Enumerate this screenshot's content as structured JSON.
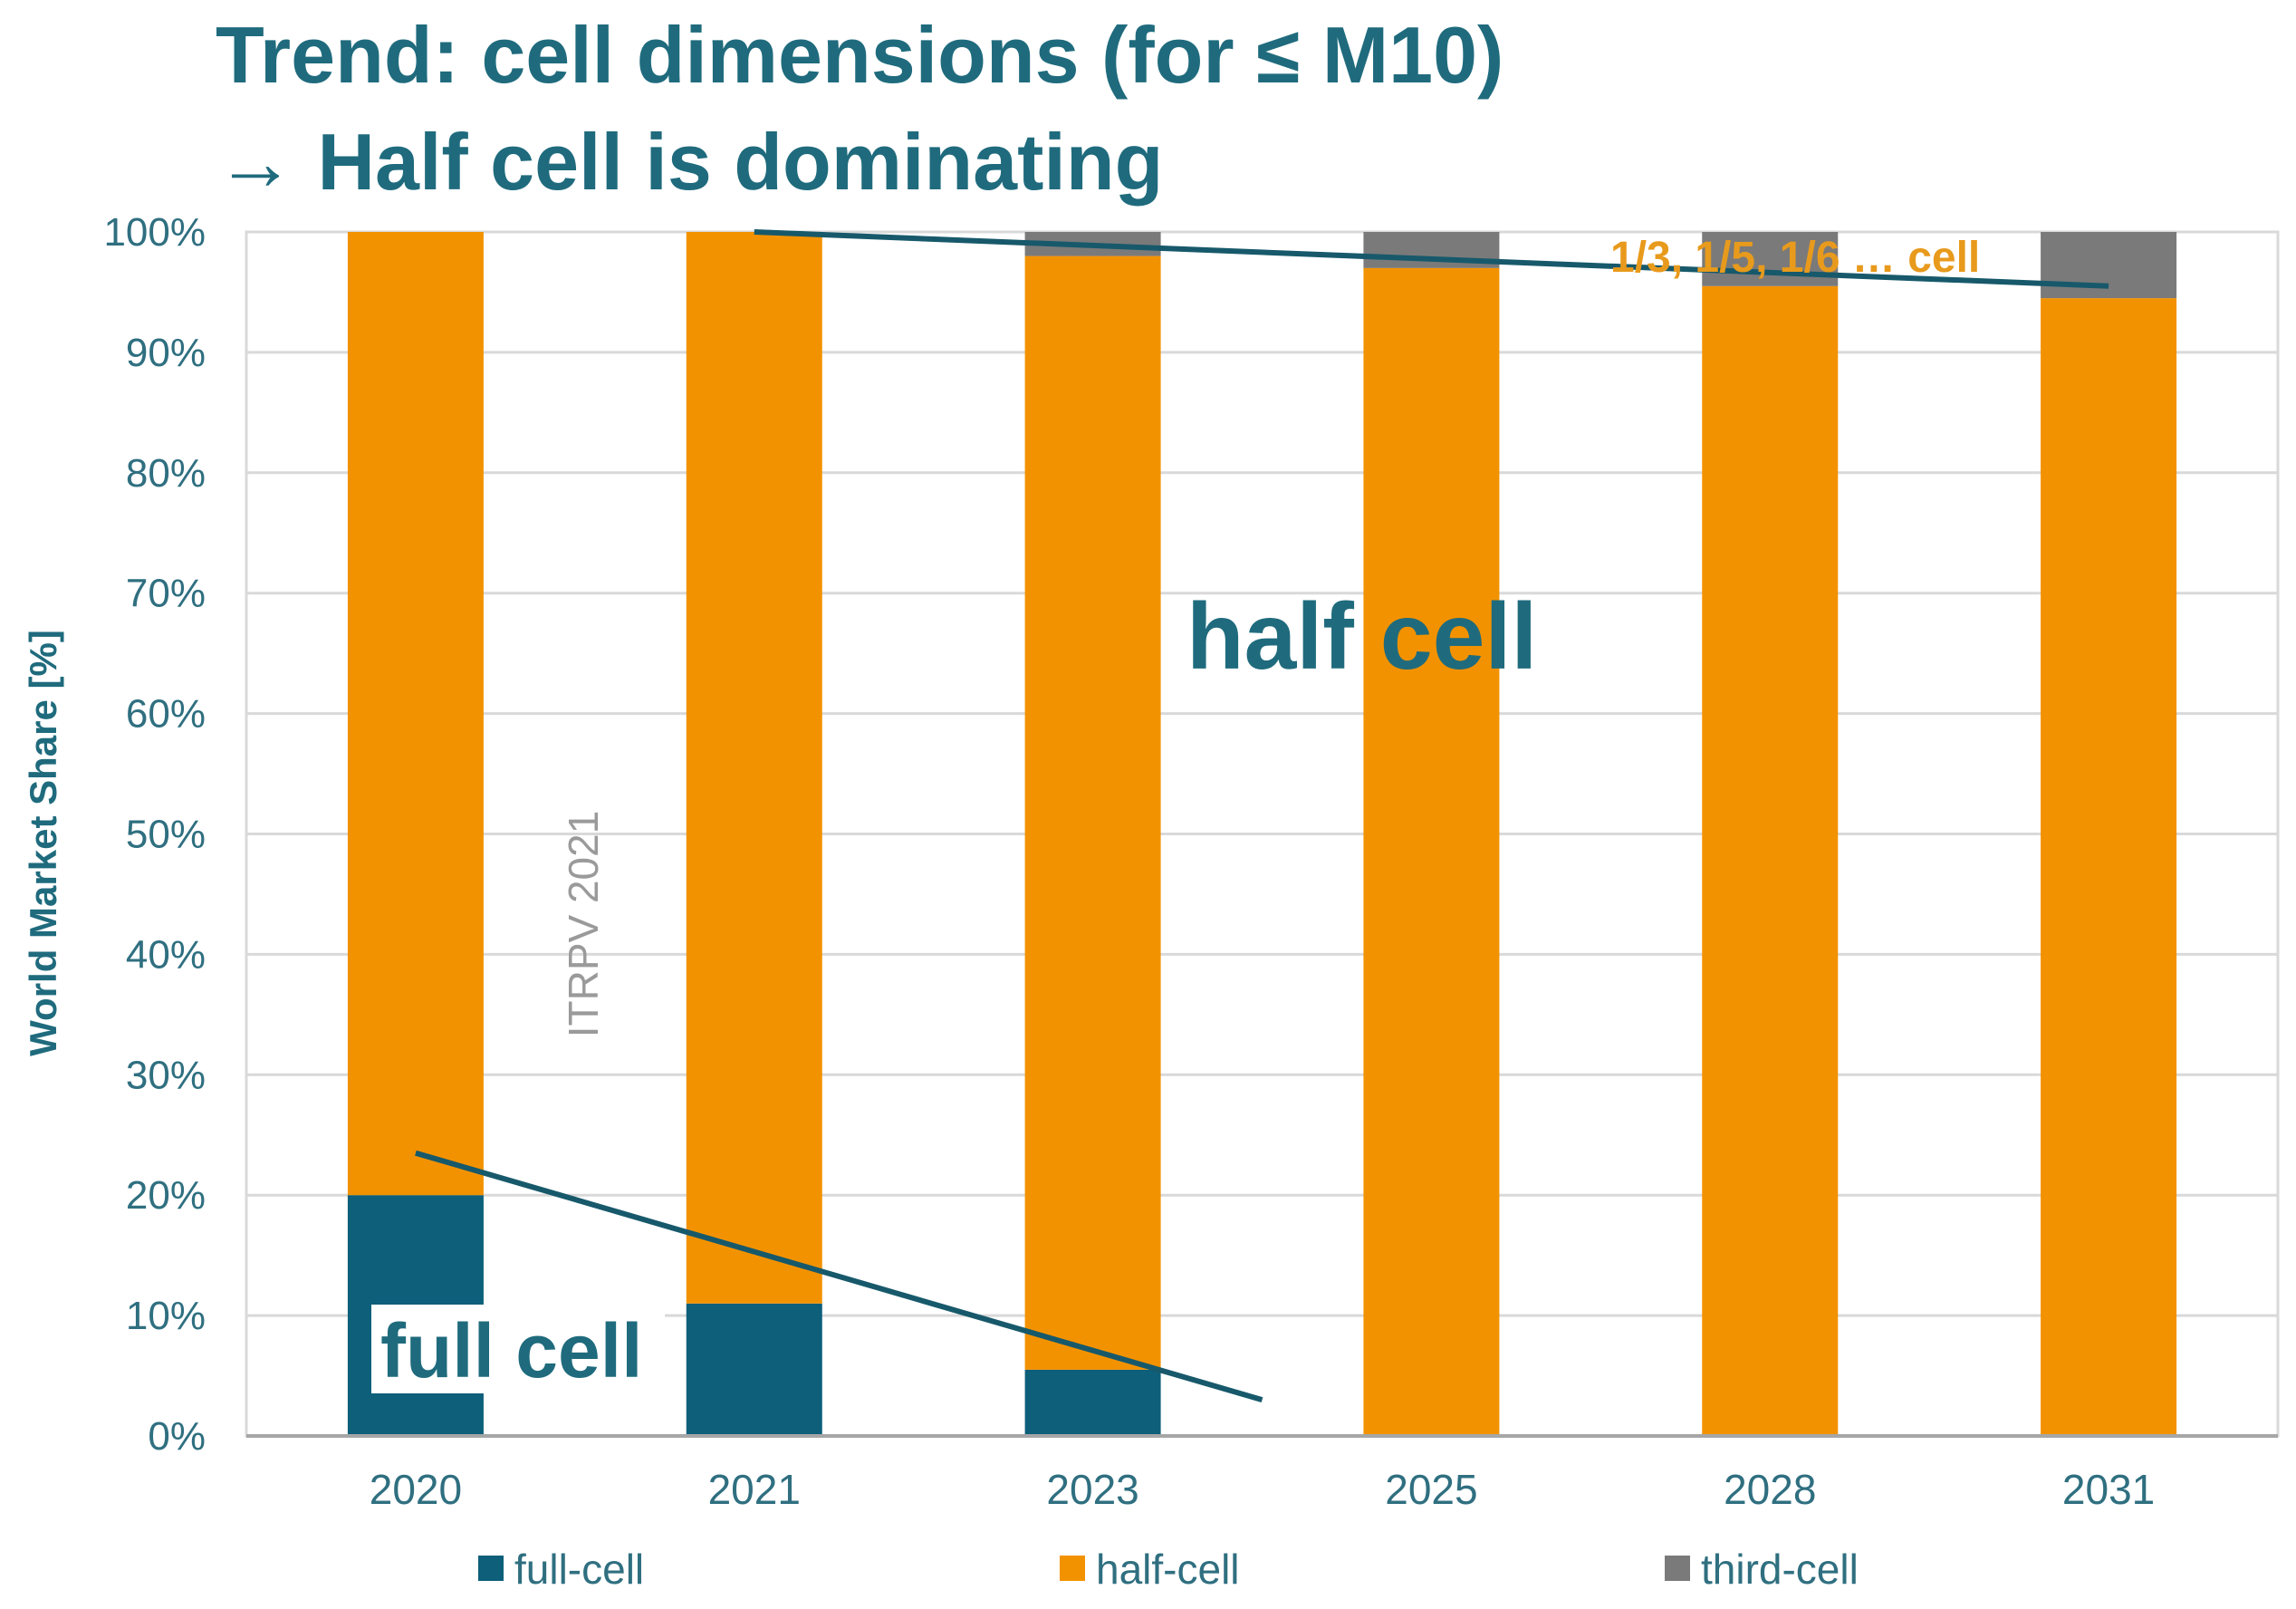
{
  "header": {
    "title_line1": "Trend: cell dimensions (for ≤ M10)",
    "title_line2": "→ Half cell is dominating"
  },
  "colors": {
    "title": "#1f6b7d",
    "full_cell": "#0d5f7a",
    "half_cell": "#f39200",
    "third_cell": "#7a7a7a",
    "axis_text": "#2f6f80",
    "grid": "#d9d9d9",
    "trend_line": "#17596b",
    "watermark": "#9a9a9a",
    "annotation_orange": "#e89a1c"
  },
  "chart_data": {
    "type": "bar",
    "stacked": true,
    "categories": [
      "2020",
      "2021",
      "2023",
      "2025",
      "2028",
      "2031"
    ],
    "series": [
      {
        "name": "full-cell",
        "color": "#0d5f7a",
        "values": [
          20,
          11,
          5.5,
          0,
          0,
          0
        ]
      },
      {
        "name": "half-cell",
        "color": "#f39200",
        "values": [
          80,
          89,
          92.5,
          97,
          95.5,
          94.5
        ]
      },
      {
        "name": "third-cell",
        "color": "#7a7a7a",
        "values": [
          0,
          0,
          2,
          3,
          4.5,
          5.5
        ]
      }
    ],
    "ylabel": "World Market Share [%]",
    "ylim": [
      0,
      100
    ],
    "yticks": [
      0,
      10,
      20,
      30,
      40,
      50,
      60,
      70,
      80,
      90,
      100
    ],
    "ytick_labels": [
      "0%",
      "10%",
      "20%",
      "30%",
      "40%",
      "50%",
      "60%",
      "70%",
      "80%",
      "90%",
      "100%"
    ],
    "grid": true,
    "legend": {
      "position": "bottom",
      "entries": [
        "full-cell",
        "half-cell",
        "third-cell"
      ]
    },
    "annotations": {
      "half_cell_label": "half cell",
      "full_cell_label": "full cell",
      "multi_cut_label": "1/3, 1/5, 1/6 … cell",
      "watermark": "ITRPV 2021"
    },
    "trend_lines": [
      {
        "name": "upper-trend",
        "from": [
          1,
          100
        ],
        "to": [
          5,
          95.5
        ]
      },
      {
        "name": "lower-trend",
        "from": [
          0,
          23.5
        ],
        "to": [
          2.5,
          3
        ]
      }
    ]
  }
}
